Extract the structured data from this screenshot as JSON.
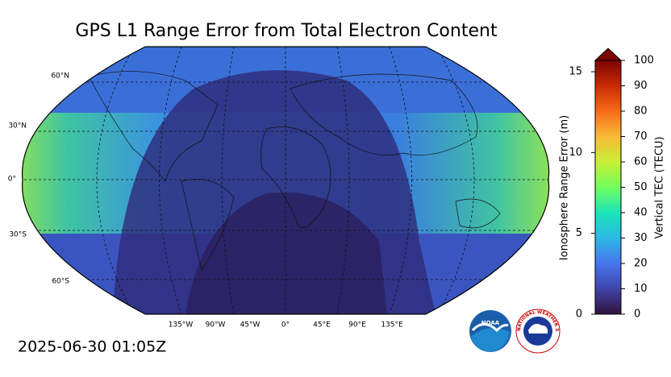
{
  "title": "GPS L1 Range Error from Total Electron Content",
  "timestamp": "2025-06-30 01:05Z",
  "map": {
    "lat_labels": [
      "60°N",
      "30°N",
      "0°",
      "30°S",
      "60°S"
    ],
    "lon_labels": [
      "135°W",
      "90°W",
      "45°W",
      "0°",
      "45°E",
      "90°E",
      "135°E"
    ]
  },
  "colorbar": {
    "left_label": "Ionosphere Range Error (m)",
    "leftlim": [
      0,
      15.7
    ],
    "leftticks": [
      0,
      5,
      10,
      15
    ],
    "right_label": "Vertical TEC (TECU)",
    "rightlim": [
      0,
      100
    ],
    "rightticks": [
      0,
      10,
      20,
      30,
      40,
      50,
      60,
      70,
      80,
      90,
      100
    ]
  },
  "logos": {
    "noaa": "NOAA",
    "nws": "NATIONAL WEATHER SERVICE"
  }
}
